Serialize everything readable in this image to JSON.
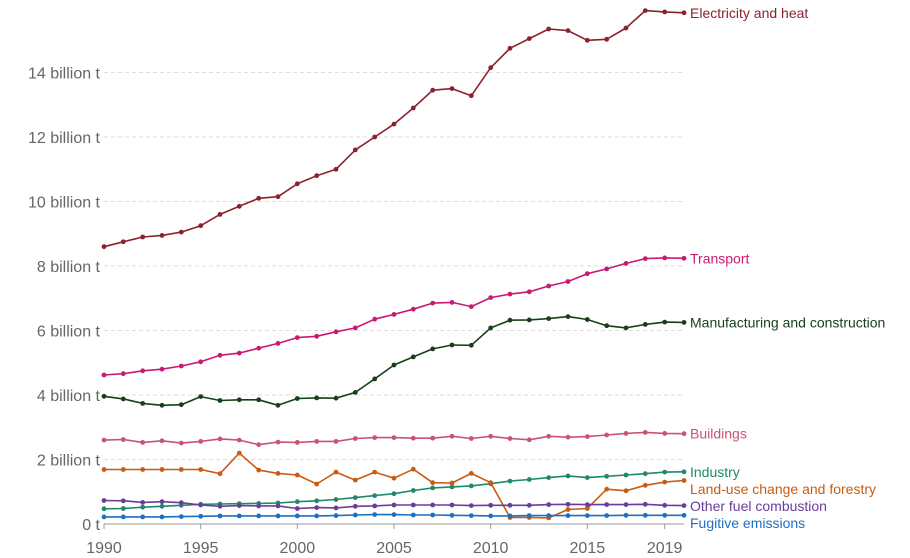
{
  "chart_data": {
    "type": "line",
    "title": "",
    "xlabel": "",
    "ylabel": "",
    "xlim": [
      1990,
      2020
    ],
    "ylim": [
      0,
      16000000000
    ],
    "grid": "horizontal dashed",
    "legend": "inline labels at right end of each line",
    "x_ticks": [
      {
        "value": 1990,
        "label": "1990"
      },
      {
        "value": 1995,
        "label": "1995"
      },
      {
        "value": 2000,
        "label": "2000"
      },
      {
        "value": 2005,
        "label": "2005"
      },
      {
        "value": 2010,
        "label": "2010"
      },
      {
        "value": 2015,
        "label": "2015"
      },
      {
        "value": 2019,
        "label": "2019"
      }
    ],
    "y_ticks": [
      {
        "value": 0,
        "label": "0 t"
      },
      {
        "value": 2000000000,
        "label": "2 billion t"
      },
      {
        "value": 4000000000,
        "label": "4 billion t"
      },
      {
        "value": 6000000000,
        "label": "6 billion t"
      },
      {
        "value": 8000000000,
        "label": "8 billion t"
      },
      {
        "value": 10000000000,
        "label": "10 billion t"
      },
      {
        "value": 12000000000,
        "label": "12 billion t"
      },
      {
        "value": 14000000000,
        "label": "14 billion t"
      }
    ],
    "x": [
      1990,
      1991,
      1992,
      1993,
      1994,
      1995,
      1996,
      1997,
      1998,
      1999,
      2000,
      2001,
      2002,
      2003,
      2004,
      2005,
      2006,
      2007,
      2008,
      2009,
      2010,
      2011,
      2012,
      2013,
      2014,
      2015,
      2016,
      2017,
      2018,
      2019,
      2020
    ],
    "series": [
      {
        "name": "Electricity and heat",
        "color": "#8b2230",
        "values": [
          8600000000,
          8750000000,
          8900000000,
          8950000000,
          9050000000,
          9250000000,
          9600000000,
          9850000000,
          10100000000,
          10150000000,
          10550000000,
          10800000000,
          11000000000,
          11600000000,
          12000000000,
          12400000000,
          12900000000,
          13450000000,
          13500000000,
          13280000000,
          14150000000,
          14750000000,
          15050000000,
          15350000000,
          15300000000,
          15000000000,
          15030000000,
          15380000000,
          15920000000,
          15880000000,
          15850000000
        ]
      },
      {
        "name": "Transport",
        "color": "#c81a74",
        "values": [
          4620000000,
          4660000000,
          4750000000,
          4800000000,
          4900000000,
          5030000000,
          5230000000,
          5300000000,
          5450000000,
          5600000000,
          5780000000,
          5820000000,
          5960000000,
          6080000000,
          6350000000,
          6500000000,
          6660000000,
          6850000000,
          6870000000,
          6740000000,
          7020000000,
          7130000000,
          7200000000,
          7380000000,
          7520000000,
          7760000000,
          7910000000,
          8080000000,
          8230000000,
          8250000000,
          8240000000
        ]
      },
      {
        "name": "Manufacturing and construction",
        "color": "#17401a",
        "values": [
          3960000000,
          3880000000,
          3740000000,
          3680000000,
          3700000000,
          3950000000,
          3830000000,
          3850000000,
          3850000000,
          3680000000,
          3890000000,
          3910000000,
          3900000000,
          4080000000,
          4500000000,
          4930000000,
          5180000000,
          5430000000,
          5550000000,
          5540000000,
          6080000000,
          6320000000,
          6330000000,
          6370000000,
          6430000000,
          6340000000,
          6150000000,
          6080000000,
          6190000000,
          6260000000,
          6250000000
        ]
      },
      {
        "name": "Buildings",
        "color": "#c9546f",
        "values": [
          2600000000,
          2620000000,
          2530000000,
          2580000000,
          2510000000,
          2560000000,
          2640000000,
          2600000000,
          2460000000,
          2540000000,
          2530000000,
          2560000000,
          2560000000,
          2650000000,
          2680000000,
          2680000000,
          2660000000,
          2660000000,
          2720000000,
          2650000000,
          2720000000,
          2650000000,
          2610000000,
          2720000000,
          2690000000,
          2710000000,
          2760000000,
          2810000000,
          2840000000,
          2810000000,
          2800000000
        ]
      },
      {
        "name": "Industry",
        "color": "#1f8a6b",
        "values": [
          470000000,
          480000000,
          520000000,
          550000000,
          580000000,
          610000000,
          620000000,
          630000000,
          640000000,
          650000000,
          690000000,
          720000000,
          760000000,
          820000000,
          880000000,
          940000000,
          1040000000,
          1120000000,
          1150000000,
          1180000000,
          1250000000,
          1330000000,
          1380000000,
          1440000000,
          1490000000,
          1440000000,
          1480000000,
          1520000000,
          1560000000,
          1610000000,
          1620000000
        ]
      },
      {
        "name": "Land-use change and forestry",
        "color": "#c95c14",
        "values": [
          1690000000,
          1690000000,
          1690000000,
          1690000000,
          1690000000,
          1690000000,
          1560000000,
          2200000000,
          1670000000,
          1570000000,
          1520000000,
          1240000000,
          1610000000,
          1360000000,
          1610000000,
          1420000000,
          1700000000,
          1280000000,
          1270000000,
          1570000000,
          1280000000,
          200000000,
          200000000,
          190000000,
          450000000,
          480000000,
          1080000000,
          1030000000,
          1200000000,
          1300000000,
          1350000000
        ]
      },
      {
        "name": "Other fuel combustion",
        "color": "#6a3d9a",
        "values": [
          730000000,
          720000000,
          670000000,
          690000000,
          660000000,
          590000000,
          550000000,
          570000000,
          560000000,
          560000000,
          480000000,
          510000000,
          500000000,
          550000000,
          560000000,
          590000000,
          590000000,
          590000000,
          590000000,
          570000000,
          580000000,
          580000000,
          580000000,
          600000000,
          610000000,
          600000000,
          600000000,
          600000000,
          610000000,
          580000000,
          570000000
        ]
      },
      {
        "name": "Fugitive emissions",
        "color": "#1f6fc0",
        "values": [
          220000000,
          220000000,
          220000000,
          220000000,
          230000000,
          240000000,
          250000000,
          250000000,
          250000000,
          250000000,
          250000000,
          250000000,
          260000000,
          280000000,
          290000000,
          290000000,
          280000000,
          280000000,
          270000000,
          260000000,
          250000000,
          250000000,
          260000000,
          260000000,
          260000000,
          260000000,
          260000000,
          270000000,
          270000000,
          270000000,
          270000000
        ]
      }
    ]
  }
}
